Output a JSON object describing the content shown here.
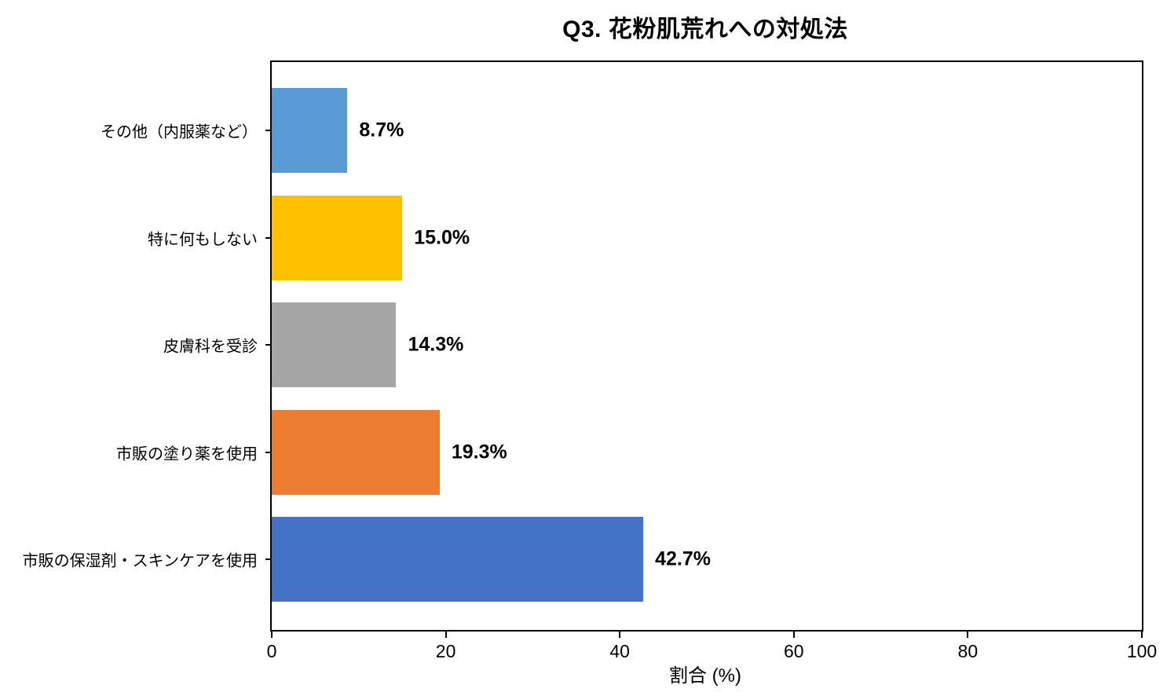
{
  "chart_data": {
    "type": "bar",
    "orientation": "horizontal",
    "title": "Q3. 花粉肌荒れへの対処法",
    "xlabel": "割合 (%)",
    "ylabel": "",
    "xlim": [
      0,
      100
    ],
    "xticks": [
      "0",
      "20",
      "40",
      "60",
      "80",
      "100"
    ],
    "grid": false,
    "legend": "none",
    "categories_top_to_bottom": [
      "その他（内服薬など）",
      "特に何もしない",
      "皮膚科を受診",
      "市販の塗り薬を使用",
      "市販の保湿剤・スキンケアを使用"
    ],
    "values": [
      8.7,
      15.0,
      14.3,
      19.3,
      42.7
    ],
    "value_labels": [
      "8.7%",
      "15.0%",
      "14.3%",
      "19.3%",
      "42.7%"
    ],
    "bar_colors": [
      "#5B9BD5",
      "#FFC000",
      "#A5A5A5",
      "#ED7D31",
      "#4472C4"
    ],
    "background_color": "#FFFFFF",
    "axis_color": "#000000"
  }
}
